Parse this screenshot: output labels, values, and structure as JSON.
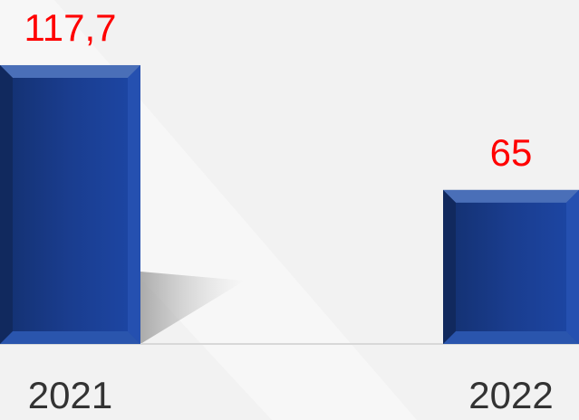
{
  "chart_data": {
    "type": "bar",
    "categories": [
      "2021",
      "2022"
    ],
    "values": [
      117.7,
      65
    ],
    "value_labels": [
      "117,7",
      "65"
    ],
    "color": "#1a3d8f",
    "label_color": "#ff0000"
  }
}
